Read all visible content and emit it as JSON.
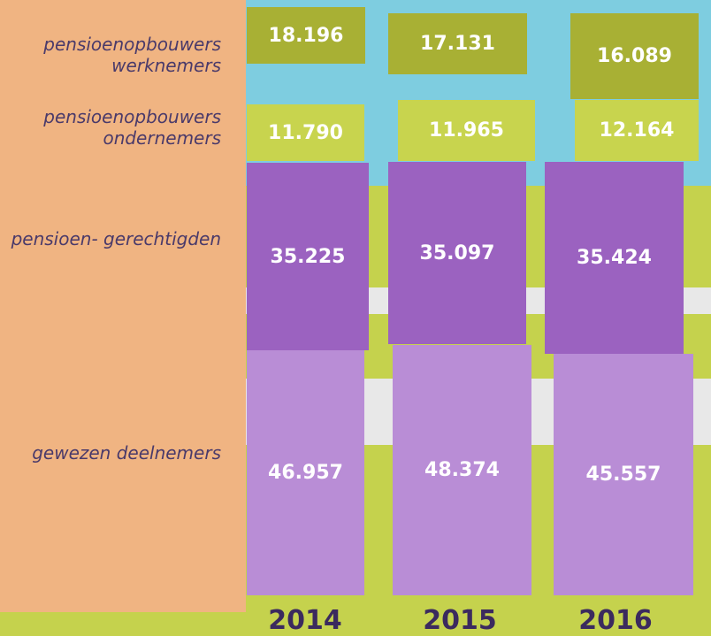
{
  "rows": [
    {
      "label": "pensioenopbouwers werknemers",
      "values": [
        "18.196",
        "17.131",
        "16.089"
      ]
    },
    {
      "label": "pensioenopbouwers ondernemers",
      "values": [
        "11.790",
        "11.965",
        "12.164"
      ]
    },
    {
      "label": "pensioen- gerechtigden",
      "values": [
        "35.225",
        "35.097",
        "35.424"
      ]
    },
    {
      "label": "gewezen deelnemers",
      "values": [
        "46.957",
        "48.374",
        "45.557"
      ]
    }
  ],
  "years": [
    "2014",
    "2015",
    "2016"
  ]
}
